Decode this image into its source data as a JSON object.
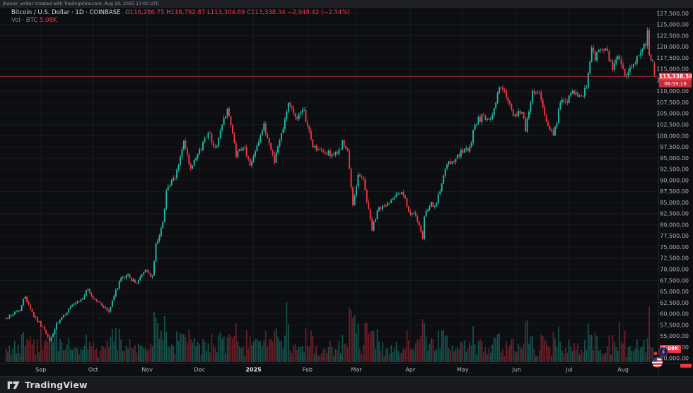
{
  "topbar": {
    "attribution": "jhaiver_writer created with TradingView.com, Aug 19, 2025 17:00 UTC"
  },
  "legend": {
    "title": "Bitcoin / U.S. Dollar · 1D · COINBASE",
    "ohlc": {
      "o_label": "O",
      "o": "116,286.75",
      "h_label": "H",
      "h": "116,792.87",
      "l_label": "L",
      "l": "113,304.69",
      "c_label": "C",
      "c": "113,338.34",
      "change": "−2,948.42 (−2.54%)"
    },
    "volume_row": {
      "label": "Vol · BTC",
      "value": "5.08K"
    }
  },
  "price_label": {
    "price": "113,338.34",
    "countdown": "06:59:19"
  },
  "volume_axis_label": "5.08K",
  "footer": {
    "brand": "TradingView"
  },
  "badges": {
    "flag_icon": "us-flag-badge",
    "bolt_icon": "lightning-badge"
  },
  "chart_data": {
    "type": "candlestick",
    "title": "Bitcoin / U.S. Dollar",
    "symbol": "BTC/USD",
    "exchange": "COINBASE",
    "interval": "1D",
    "ylim": [
      50000,
      127500
    ],
    "ytick_step": 2500,
    "grid": true,
    "days": 373,
    "x_ticks": [
      {
        "label": "Sep",
        "day": 20
      },
      {
        "label": "Oct",
        "day": 50
      },
      {
        "label": "Nov",
        "day": 81
      },
      {
        "label": "Dec",
        "day": 111
      },
      {
        "label": "2025",
        "day": 142,
        "major": true
      },
      {
        "label": "Feb",
        "day": 173
      },
      {
        "label": "Mar",
        "day": 201
      },
      {
        "label": "Apr",
        "day": 232
      },
      {
        "label": "May",
        "day": 262
      },
      {
        "label": "Jun",
        "day": 293
      },
      {
        "label": "Jul",
        "day": 323
      },
      {
        "label": "Aug",
        "day": 354
      }
    ],
    "anchors": [
      [
        0,
        59000
      ],
      [
        8,
        61000
      ],
      [
        11,
        64000
      ],
      [
        16,
        59500
      ],
      [
        21,
        57000
      ],
      [
        25,
        53800
      ],
      [
        29,
        57500
      ],
      [
        37,
        61500
      ],
      [
        43,
        63000
      ],
      [
        47,
        65500
      ],
      [
        50,
        63500
      ],
      [
        55,
        62000
      ],
      [
        59,
        60500
      ],
      [
        65,
        67300
      ],
      [
        70,
        68800
      ],
      [
        74,
        66800
      ],
      [
        77,
        68000
      ],
      [
        80,
        70000
      ],
      [
        84,
        68200
      ],
      [
        86,
        75500
      ],
      [
        90,
        80300
      ],
      [
        92,
        88000
      ],
      [
        97,
        90500
      ],
      [
        102,
        98500
      ],
      [
        106,
        92200
      ],
      [
        111,
        96500
      ],
      [
        116,
        101200
      ],
      [
        120,
        96800
      ],
      [
        127,
        106500
      ],
      [
        132,
        95800
      ],
      [
        137,
        97200
      ],
      [
        140,
        93200
      ],
      [
        144,
        98200
      ],
      [
        148,
        102100
      ],
      [
        154,
        94500
      ],
      [
        158,
        100500
      ],
      [
        162,
        107500
      ],
      [
        166,
        104200
      ],
      [
        171,
        105100
      ],
      [
        176,
        97800
      ],
      [
        180,
        96400
      ],
      [
        184,
        96100
      ],
      [
        190,
        95700
      ],
      [
        193,
        98500
      ],
      [
        196,
        96200
      ],
      [
        199,
        84300
      ],
      [
        202,
        91500
      ],
      [
        205,
        90000
      ],
      [
        210,
        79000
      ],
      [
        214,
        83900
      ],
      [
        218,
        84200
      ],
      [
        224,
        87400
      ],
      [
        228,
        86800
      ],
      [
        231,
        82500
      ],
      [
        234,
        83200
      ],
      [
        239,
        76800
      ],
      [
        240,
        82000
      ],
      [
        244,
        84500
      ],
      [
        247,
        84800
      ],
      [
        253,
        93500
      ],
      [
        258,
        95000
      ],
      [
        262,
        96500
      ],
      [
        266,
        97000
      ],
      [
        269,
        102900
      ],
      [
        273,
        104100
      ],
      [
        278,
        103200
      ],
      [
        283,
        111000
      ],
      [
        287,
        109200
      ],
      [
        291,
        104000
      ],
      [
        296,
        105600
      ],
      [
        298,
        101600
      ],
      [
        302,
        109700
      ],
      [
        306,
        110200
      ],
      [
        308,
        105800
      ],
      [
        314,
        99600
      ],
      [
        318,
        107300
      ],
      [
        322,
        108000
      ],
      [
        325,
        109600
      ],
      [
        330,
        108200
      ],
      [
        333,
        111000
      ],
      [
        336,
        119800
      ],
      [
        338,
        117500
      ],
      [
        341,
        119500
      ],
      [
        345,
        118600
      ],
      [
        348,
        115200
      ],
      [
        352,
        118000
      ],
      [
        355,
        113000
      ],
      [
        358,
        114500
      ],
      [
        361,
        116800
      ],
      [
        364,
        119200
      ],
      [
        367,
        120800
      ],
      [
        368,
        123400
      ],
      [
        369,
        117800
      ],
      [
        370,
        117300
      ],
      [
        371,
        116300
      ],
      [
        372,
        113338.34
      ]
    ],
    "last_candle": {
      "open": 116286.75,
      "high": 116792.87,
      "low": 113304.69,
      "close": 113338.34
    },
    "last_close": 113338.34,
    "last_volume": "5.08K",
    "volume_spikes": [
      [
        86,
        0.75
      ],
      [
        87,
        0.6
      ],
      [
        92,
        0.55
      ],
      [
        102,
        0.45
      ],
      [
        128,
        0.42
      ],
      [
        161,
        1.0
      ],
      [
        162,
        0.7
      ],
      [
        199,
        0.75
      ],
      [
        200,
        0.8
      ],
      [
        202,
        0.6
      ],
      [
        210,
        0.5
      ],
      [
        239,
        0.65
      ],
      [
        240,
        0.7
      ],
      [
        253,
        0.4
      ],
      [
        283,
        0.45
      ],
      [
        302,
        0.4
      ],
      [
        314,
        0.45
      ],
      [
        336,
        0.5
      ],
      [
        352,
        0.65
      ],
      [
        355,
        0.5
      ],
      [
        368,
        0.45
      ],
      [
        372,
        0.07
      ]
    ],
    "colors": {
      "bg": "#0d0e12",
      "up": "#20bba6",
      "down": "#f23645",
      "vol_up": "rgba(34,171,148,0.45)",
      "vol_down": "rgba(242,54,69,0.42)",
      "grid": "#171a21",
      "axis_text": "#b0b3bc",
      "major_tick_text": "#dfe2e8",
      "border": "#1f232b",
      "price_line": "#f23645",
      "label_bg": "#f23645"
    }
  }
}
